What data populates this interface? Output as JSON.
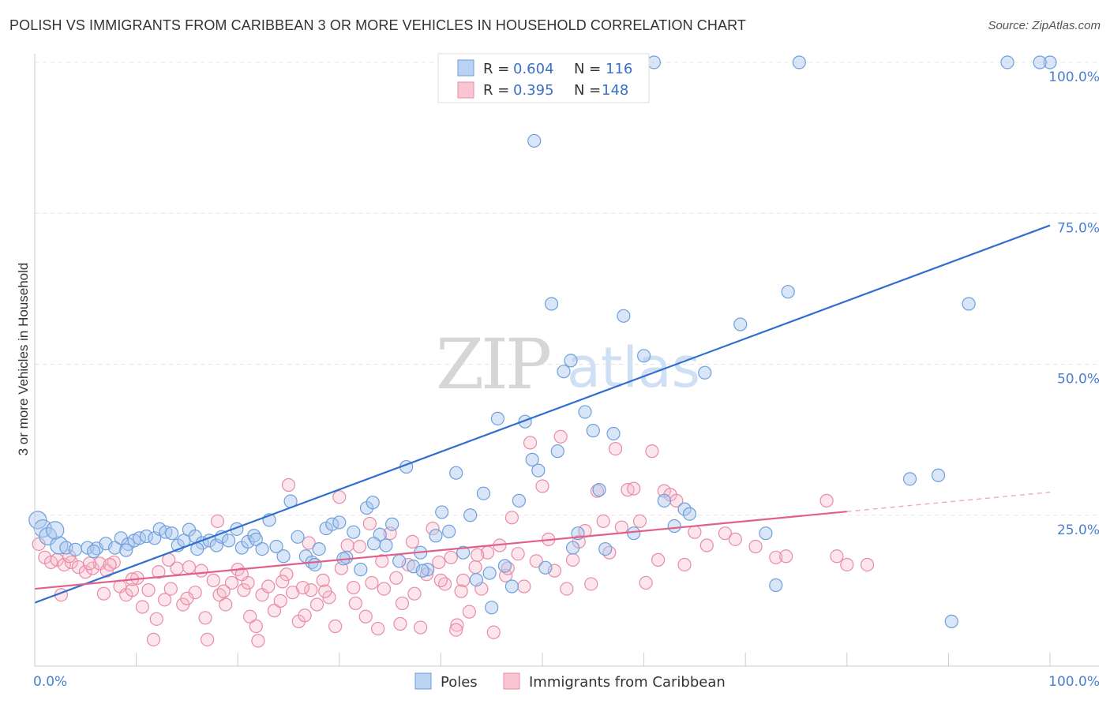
{
  "title": "POLISH VS IMMIGRANTS FROM CARIBBEAN 3 OR MORE VEHICLES IN HOUSEHOLD CORRELATION CHART",
  "source": "Source: ZipAtlas.com",
  "watermark": {
    "zip": "ZIP",
    "atlas": "atlas"
  },
  "legend_top": {
    "poles": {
      "r_label": "R = ",
      "r_value": "0.604",
      "n_label": "N = ",
      "n_value": "116"
    },
    "caribbean": {
      "r_label": "R = ",
      "r_value": "0.395",
      "n_label": "N = ",
      "n_value": "148"
    }
  },
  "colors": {
    "blue": "#3a70c8",
    "pink": "#e0608a"
  },
  "chart_data": {
    "type": "scatter",
    "title": "POLISH VS IMMIGRANTS FROM CARIBBEAN 3 OR MORE VEHICLES IN HOUSEHOLD CORRELATION CHART",
    "xlabel": "",
    "ylabel": "3 or more Vehicles in Household",
    "xlim": [
      0,
      100
    ],
    "ylim": [
      0,
      100
    ],
    "x_tick_labels": [
      "0.0%",
      "100.0%"
    ],
    "y_tick_labels": [
      "25.0%",
      "50.0%",
      "75.0%",
      "100.0%"
    ],
    "y_ticks": [
      25,
      50,
      75,
      100
    ],
    "grid": true,
    "legend_position": "bottom-center",
    "series": [
      {
        "name": "Poles",
        "color": "#6e9fdb",
        "trend": {
          "x": [
            0,
            100
          ],
          "y": [
            10.5,
            73.0
          ]
        },
        "points": [
          [
            0.3,
            24.2
          ],
          [
            0.8,
            22.8
          ],
          [
            1.3,
            21.5
          ],
          [
            2.4,
            20.0
          ],
          [
            3.1,
            19.6
          ],
          [
            4.0,
            19.3
          ],
          [
            5.2,
            19.6
          ],
          [
            6.1,
            19.5
          ],
          [
            7.0,
            20.3
          ],
          [
            7.9,
            19.6
          ],
          [
            8.5,
            21.2
          ],
          [
            9.2,
            20.2
          ],
          [
            9.8,
            20.8
          ],
          [
            10.3,
            21.2
          ],
          [
            11.0,
            21.5
          ],
          [
            11.8,
            21.2
          ],
          [
            12.3,
            22.7
          ],
          [
            12.9,
            22.2
          ],
          [
            13.5,
            22.0
          ],
          [
            14.1,
            20.0
          ],
          [
            14.7,
            20.8
          ],
          [
            15.2,
            22.6
          ],
          [
            15.8,
            21.5
          ],
          [
            16.5,
            20.4
          ],
          [
            17.2,
            20.8
          ],
          [
            17.9,
            20.0
          ],
          [
            18.4,
            21.4
          ],
          [
            19.1,
            20.8
          ],
          [
            19.9,
            22.7
          ],
          [
            20.4,
            19.6
          ],
          [
            21.0,
            20.6
          ],
          [
            21.6,
            21.6
          ],
          [
            22.4,
            19.4
          ],
          [
            23.1,
            24.2
          ],
          [
            23.8,
            19.8
          ],
          [
            24.5,
            18.2
          ],
          [
            25.2,
            27.3
          ],
          [
            25.9,
            21.4
          ],
          [
            26.7,
            18.2
          ],
          [
            27.3,
            17.2
          ],
          [
            28.0,
            19.4
          ],
          [
            28.7,
            22.8
          ],
          [
            29.3,
            23.5
          ],
          [
            30.0,
            23.8
          ],
          [
            30.7,
            18.0
          ],
          [
            31.4,
            22.2
          ],
          [
            32.1,
            16.0
          ],
          [
            32.7,
            26.2
          ],
          [
            33.3,
            27.1
          ],
          [
            34.0,
            21.8
          ],
          [
            34.6,
            20.0
          ],
          [
            35.2,
            23.5
          ],
          [
            35.9,
            17.4
          ],
          [
            36.6,
            33.0
          ],
          [
            37.3,
            16.5
          ],
          [
            38.0,
            18.8
          ],
          [
            38.7,
            16.0
          ],
          [
            39.5,
            21.6
          ],
          [
            40.1,
            25.5
          ],
          [
            40.8,
            22.3
          ],
          [
            41.5,
            32.0
          ],
          [
            42.2,
            18.8
          ],
          [
            42.9,
            25.0
          ],
          [
            43.5,
            14.3
          ],
          [
            44.2,
            28.6
          ],
          [
            45.0,
            9.7
          ],
          [
            45.6,
            41.0
          ],
          [
            46.3,
            16.6
          ],
          [
            47.0,
            13.2
          ],
          [
            47.7,
            27.4
          ],
          [
            48.3,
            40.5
          ],
          [
            49.0,
            34.2
          ],
          [
            49.6,
            32.4
          ],
          [
            50.3,
            16.3
          ],
          [
            50.9,
            60.0
          ],
          [
            51.5,
            35.6
          ],
          [
            52.1,
            48.8
          ],
          [
            52.8,
            50.6
          ],
          [
            53.5,
            22.0
          ],
          [
            54.2,
            42.1
          ],
          [
            55.0,
            39.0
          ],
          [
            55.6,
            29.2
          ],
          [
            56.2,
            19.4
          ],
          [
            57.0,
            38.5
          ],
          [
            58.0,
            58.0
          ],
          [
            59.0,
            22.0
          ],
          [
            60.0,
            51.4
          ],
          [
            61.0,
            100.0
          ],
          [
            62.0,
            27.4
          ],
          [
            63.0,
            23.2
          ],
          [
            64.0,
            26.0
          ],
          [
            64.5,
            25.2
          ],
          [
            66.0,
            48.6
          ],
          [
            69.5,
            56.6
          ],
          [
            72.0,
            22.0
          ],
          [
            73.0,
            13.4
          ],
          [
            74.2,
            62.0
          ],
          [
            75.3,
            100.0
          ],
          [
            86.2,
            31.0
          ],
          [
            89.0,
            31.6
          ],
          [
            90.3,
            7.4
          ],
          [
            92.0,
            60.0
          ],
          [
            95.8,
            100.0
          ],
          [
            100.0,
            100.0
          ],
          [
            99.0,
            100.0
          ],
          [
            47.1,
            100.0
          ],
          [
            49.2,
            87.0
          ],
          [
            33.4,
            20.3
          ],
          [
            5.8,
            19.0
          ],
          [
            2.0,
            22.5
          ],
          [
            9.0,
            19.2
          ],
          [
            16.0,
            19.4
          ],
          [
            21.8,
            21.0
          ],
          [
            27.6,
            16.8
          ],
          [
            30.4,
            17.8
          ],
          [
            38.2,
            15.8
          ],
          [
            44.8,
            15.4
          ],
          [
            53.0,
            19.6
          ]
        ]
      },
      {
        "name": "Immigrants from Caribbean",
        "color": "#e98aa8",
        "trend": {
          "x": [
            0,
            80
          ],
          "y": [
            12.8,
            25.6
          ]
        },
        "trend_dashed": {
          "x": [
            80,
            100
          ],
          "y": [
            25.6,
            28.8
          ]
        },
        "points": [
          [
            0.4,
            20.2
          ],
          [
            1.0,
            18.0
          ],
          [
            1.6,
            17.2
          ],
          [
            2.2,
            17.6
          ],
          [
            2.9,
            16.8
          ],
          [
            3.6,
            17.2
          ],
          [
            4.3,
            16.4
          ],
          [
            5.0,
            15.6
          ],
          [
            5.7,
            16.2
          ],
          [
            6.4,
            17.0
          ],
          [
            7.1,
            15.8
          ],
          [
            7.8,
            17.2
          ],
          [
            8.4,
            13.2
          ],
          [
            9.0,
            11.8
          ],
          [
            9.6,
            12.6
          ],
          [
            10.1,
            14.6
          ],
          [
            10.6,
            9.8
          ],
          [
            11.2,
            12.6
          ],
          [
            11.7,
            4.4
          ],
          [
            12.2,
            15.6
          ],
          [
            12.8,
            11.0
          ],
          [
            13.4,
            12.8
          ],
          [
            14.0,
            16.2
          ],
          [
            14.6,
            10.2
          ],
          [
            15.2,
            16.4
          ],
          [
            15.8,
            12.2
          ],
          [
            16.4,
            15.8
          ],
          [
            17.0,
            4.4
          ],
          [
            17.6,
            14.2
          ],
          [
            18.2,
            11.8
          ],
          [
            18.8,
            10.2
          ],
          [
            19.4,
            13.8
          ],
          [
            20.0,
            16.0
          ],
          [
            20.6,
            12.6
          ],
          [
            21.2,
            8.2
          ],
          [
            21.8,
            6.6
          ],
          [
            22.4,
            11.8
          ],
          [
            23.0,
            13.2
          ],
          [
            23.6,
            9.2
          ],
          [
            24.2,
            10.8
          ],
          [
            24.8,
            15.2
          ],
          [
            25.4,
            12.2
          ],
          [
            26.0,
            7.4
          ],
          [
            26.6,
            8.4
          ],
          [
            27.2,
            12.6
          ],
          [
            27.8,
            10.2
          ],
          [
            28.4,
            14.2
          ],
          [
            29.0,
            11.4
          ],
          [
            29.6,
            6.6
          ],
          [
            30.2,
            16.2
          ],
          [
            30.8,
            20.0
          ],
          [
            31.4,
            13.0
          ],
          [
            32.0,
            19.8
          ],
          [
            32.6,
            8.2
          ],
          [
            33.2,
            13.8
          ],
          [
            33.8,
            6.2
          ],
          [
            34.4,
            12.8
          ],
          [
            35.0,
            22.0
          ],
          [
            35.6,
            14.6
          ],
          [
            36.2,
            10.4
          ],
          [
            36.8,
            16.8
          ],
          [
            37.4,
            12.0
          ],
          [
            38.0,
            6.4
          ],
          [
            38.6,
            15.2
          ],
          [
            39.2,
            22.8
          ],
          [
            39.8,
            17.2
          ],
          [
            40.4,
            13.6
          ],
          [
            41.0,
            18.0
          ],
          [
            41.6,
            6.8
          ],
          [
            42.2,
            14.2
          ],
          [
            42.8,
            9.0
          ],
          [
            43.4,
            16.4
          ],
          [
            44.0,
            12.8
          ],
          [
            44.6,
            18.8
          ],
          [
            45.2,
            5.6
          ],
          [
            45.8,
            20.0
          ],
          [
            46.4,
            15.0
          ],
          [
            47.0,
            24.6
          ],
          [
            47.6,
            18.6
          ],
          [
            48.2,
            13.2
          ],
          [
            48.8,
            37.0
          ],
          [
            49.4,
            17.4
          ],
          [
            50.0,
            29.8
          ],
          [
            50.6,
            21.0
          ],
          [
            51.2,
            15.8
          ],
          [
            51.8,
            38.0
          ],
          [
            52.4,
            12.8
          ],
          [
            53.0,
            17.6
          ],
          [
            53.6,
            20.6
          ],
          [
            54.2,
            22.4
          ],
          [
            54.8,
            13.6
          ],
          [
            55.4,
            29.0
          ],
          [
            56.0,
            24.0
          ],
          [
            56.6,
            18.8
          ],
          [
            57.2,
            36.0
          ],
          [
            57.8,
            23.0
          ],
          [
            58.4,
            29.2
          ],
          [
            59.0,
            29.4
          ],
          [
            59.6,
            24.0
          ],
          [
            60.2,
            13.8
          ],
          [
            60.8,
            35.6
          ],
          [
            61.4,
            17.6
          ],
          [
            62.0,
            29.0
          ],
          [
            62.6,
            28.4
          ],
          [
            63.2,
            27.4
          ],
          [
            64.0,
            16.8
          ],
          [
            65.0,
            22.2
          ],
          [
            66.2,
            20.0
          ],
          [
            68.0,
            22.0
          ],
          [
            69.0,
            21.0
          ],
          [
            71.0,
            19.8
          ],
          [
            73.0,
            18.0
          ],
          [
            74.0,
            18.2
          ],
          [
            78.0,
            27.4
          ],
          [
            79.0,
            18.2
          ],
          [
            80.0,
            16.8
          ],
          [
            82.0,
            16.8
          ],
          [
            18.0,
            24.0
          ],
          [
            22.0,
            4.2
          ],
          [
            12.0,
            7.8
          ],
          [
            25.0,
            30.0
          ],
          [
            30.0,
            28.0
          ],
          [
            36.0,
            7.0
          ],
          [
            41.5,
            6.0
          ],
          [
            43.6,
            18.4
          ],
          [
            46.6,
            16.2
          ],
          [
            27.0,
            20.4
          ],
          [
            33.0,
            23.6
          ],
          [
            21.0,
            13.8
          ],
          [
            16.8,
            8.0
          ],
          [
            9.6,
            14.4
          ],
          [
            7.4,
            16.8
          ],
          [
            3.4,
            18.2
          ],
          [
            2.6,
            11.8
          ],
          [
            5.4,
            17.0
          ],
          [
            6.8,
            12.0
          ],
          [
            13.2,
            17.6
          ],
          [
            15.0,
            11.2
          ],
          [
            18.6,
            12.4
          ],
          [
            20.4,
            15.2
          ],
          [
            24.4,
            14.0
          ],
          [
            26.4,
            13.0
          ],
          [
            28.6,
            12.4
          ],
          [
            31.6,
            10.4
          ],
          [
            34.2,
            17.4
          ],
          [
            37.2,
            20.6
          ],
          [
            40.0,
            14.2
          ],
          [
            42.0,
            12.4
          ]
        ]
      }
    ]
  }
}
